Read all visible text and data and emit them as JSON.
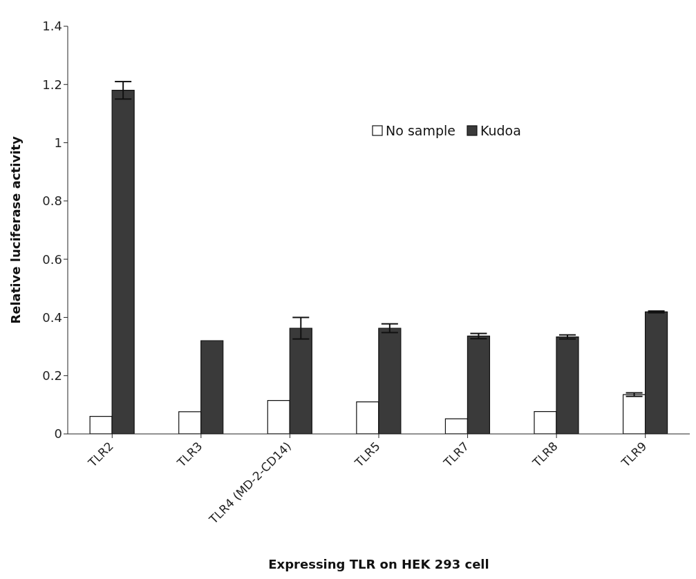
{
  "chart_data": {
    "type": "bar",
    "xlabel": "Expressing TLR on HEK 293 cell",
    "ylabel": "Relative luciferase activity",
    "categories": [
      "TLR2",
      "TLR3",
      "TLR4 (MD-2-CD14)",
      "TLR5",
      "TLR7",
      "TLR8",
      "TLR9"
    ],
    "series": [
      {
        "name": "No sample",
        "color": "#ffffff",
        "values": [
          0.06,
          0.076,
          0.115,
          0.11,
          0.052,
          0.077,
          0.135
        ],
        "errors": [
          null,
          null,
          null,
          null,
          null,
          null,
          0.006
        ]
      },
      {
        "name": "Kudoa",
        "color": "#3a3a3a",
        "values": [
          1.18,
          0.32,
          0.363,
          0.363,
          0.336,
          0.333,
          0.419
        ],
        "errors": [
          0.03,
          null,
          0.037,
          0.015,
          0.009,
          0.007,
          0.003
        ]
      }
    ],
    "ylim": [
      0,
      1.4
    ],
    "yticks": [
      0,
      0.2,
      0.4,
      0.6,
      0.8,
      1,
      1.2,
      1.4
    ],
    "legend": "top right",
    "grid": false
  }
}
